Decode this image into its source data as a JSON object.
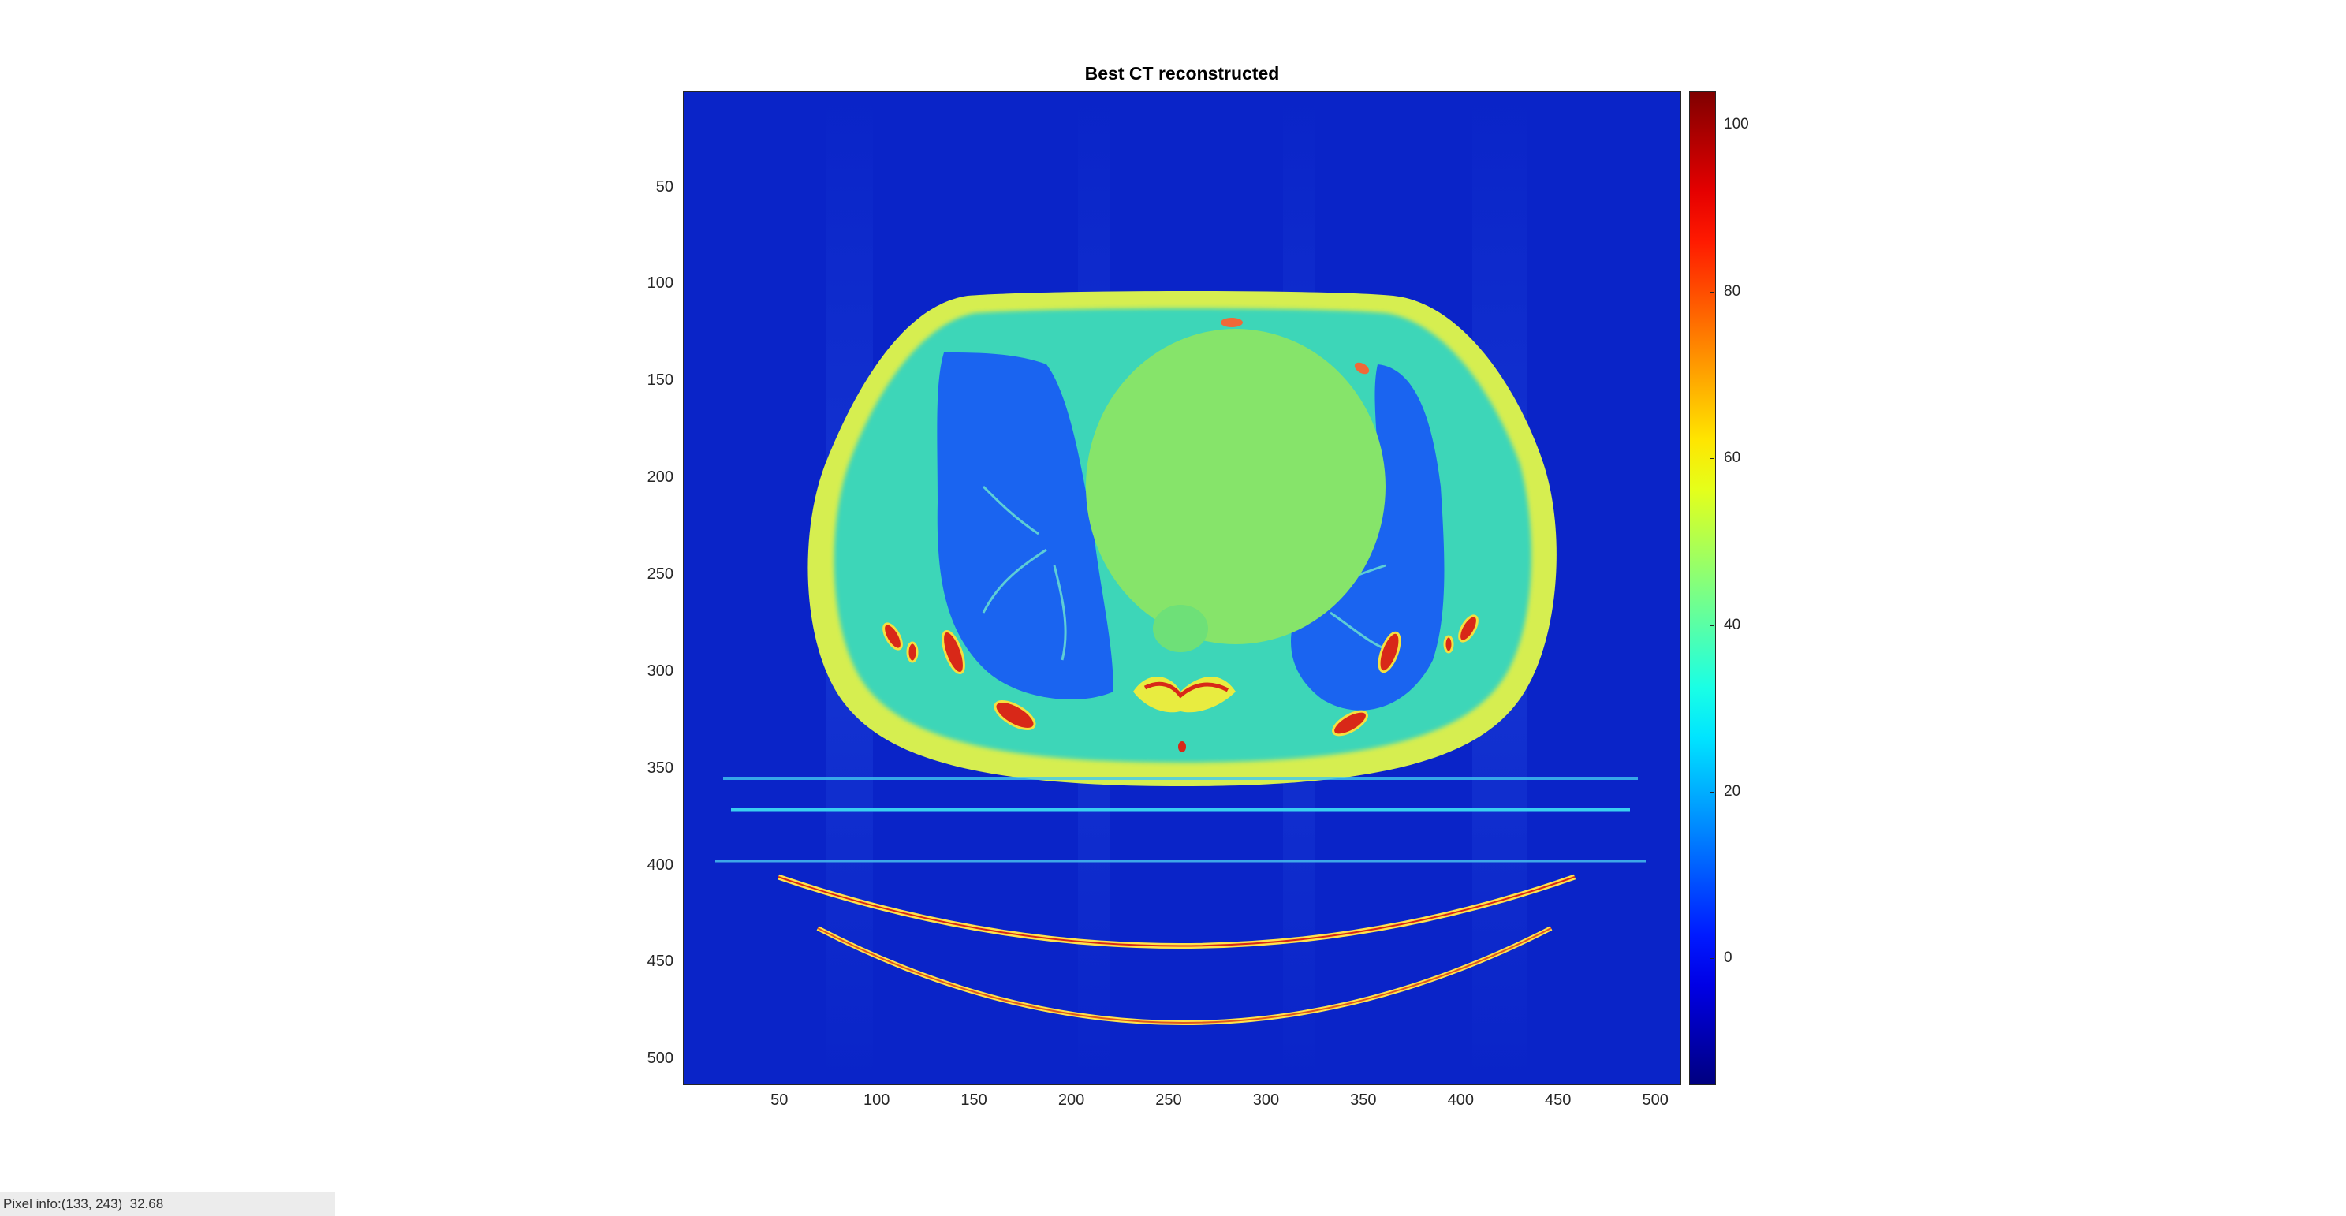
{
  "figure": {
    "title": "Best CT reconstructed"
  },
  "axes": {
    "x_ticks": [
      50,
      100,
      150,
      200,
      250,
      300,
      350,
      400,
      450,
      500
    ],
    "y_ticks": [
      50,
      100,
      150,
      200,
      250,
      300,
      350,
      400,
      450,
      500
    ],
    "xlim": [
      0.5,
      512.5
    ],
    "ylim": [
      0.5,
      512.5
    ],
    "y_direction": "reverse"
  },
  "colorbar": {
    "colormap": "jet",
    "ticks": [
      0,
      20,
      40,
      60,
      80,
      100
    ],
    "range": [
      -15,
      104
    ],
    "placement": "right"
  },
  "colors": {
    "background": "#0a24c8",
    "body_tissue": "#46e0a8",
    "fat_layer": "#d8ee4a",
    "lung": "#1860f0",
    "heart": "#8ee660",
    "bone": "#e03018",
    "table": "#ffe04a"
  },
  "status": {
    "label": "Pixel info:",
    "value": "(133, 243)  32.68"
  }
}
